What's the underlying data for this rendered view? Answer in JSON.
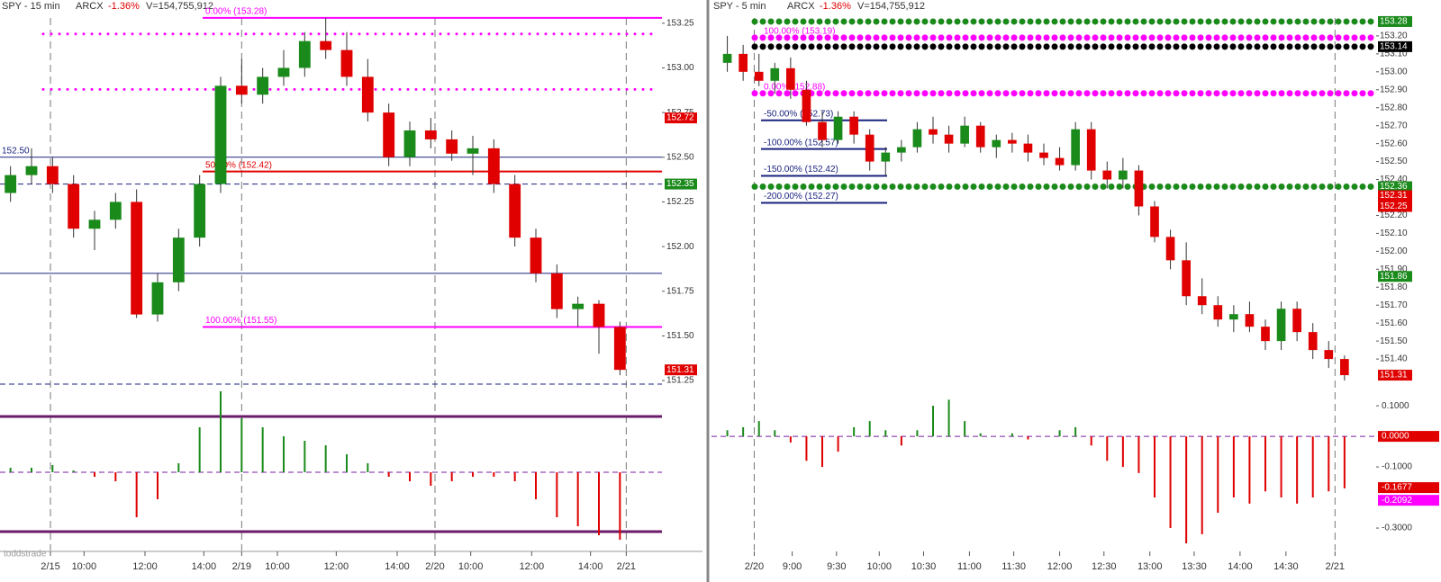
{
  "chart_data": [
    {
      "type": "candlestick",
      "title": "SPY - 15 min",
      "exchange": "ARCX",
      "change": "-1.36%",
      "volume": "V=154,755,912",
      "xlim": [
        -0.5,
        31
      ],
      "ylim": [
        151.19,
        153.38
      ],
      "xticks": [
        {
          "value": 1.9,
          "label": "2/15"
        },
        {
          "value": 3.5,
          "label": "10:00"
        },
        {
          "value": 6.4,
          "label": "12:00"
        },
        {
          "value": 9.2,
          "label": "14:00"
        },
        {
          "value": 11,
          "label": "2/19"
        },
        {
          "value": 12.7,
          "label": "10:00"
        },
        {
          "value": 15.5,
          "label": "12:00"
        },
        {
          "value": 18.4,
          "label": "14:00"
        },
        {
          "value": 20.2,
          "label": "2/20"
        },
        {
          "value": 21.9,
          "label": "10:00"
        },
        {
          "value": 24.8,
          "label": "12:00"
        },
        {
          "value": 27.6,
          "label": "14:00"
        },
        {
          "value": 29.3,
          "label": "2/21"
        }
      ],
      "yticks": [
        153.25,
        {
          "value": 153,
          "label": "153.00"
        },
        152.75,
        {
          "value": 152.5,
          "label": "152.50"
        },
        152.25,
        {
          "value": 152,
          "label": "152.00"
        },
        151.75,
        {
          "value": 151.5,
          "label": "151.50"
        },
        151.25
      ],
      "ohlc": [
        [
          152.3,
          152.45,
          152.25,
          152.4
        ],
        [
          152.4,
          152.55,
          152.35,
          152.45
        ],
        [
          152.45,
          152.5,
          152.3,
          152.35
        ],
        [
          152.35,
          152.4,
          152.05,
          152.1
        ],
        [
          152.1,
          152.2,
          151.98,
          152.15
        ],
        [
          152.15,
          152.3,
          152.1,
          152.25
        ],
        [
          152.25,
          152.32,
          151.6,
          151.62
        ],
        [
          151.62,
          151.85,
          151.58,
          151.8
        ],
        [
          151.8,
          152.1,
          151.75,
          152.05
        ],
        [
          152.05,
          152.4,
          152.0,
          152.35
        ],
        [
          152.35,
          152.95,
          152.3,
          152.9
        ],
        [
          152.9,
          153.05,
          152.8,
          152.85
        ],
        [
          152.85,
          153.0,
          152.8,
          152.95
        ],
        [
          152.95,
          153.1,
          152.9,
          153.0
        ],
        [
          153.0,
          153.2,
          152.95,
          153.15
        ],
        [
          153.15,
          153.28,
          153.05,
          153.1
        ],
        [
          153.1,
          153.2,
          152.9,
          152.95
        ],
        [
          152.95,
          153.05,
          152.7,
          152.75
        ],
        [
          152.75,
          152.8,
          152.45,
          152.5
        ],
        [
          152.5,
          152.7,
          152.45,
          152.65
        ],
        [
          152.65,
          152.72,
          152.55,
          152.6
        ],
        [
          152.6,
          152.65,
          152.48,
          152.52
        ],
        [
          152.52,
          152.62,
          152.4,
          152.55
        ],
        [
          152.55,
          152.6,
          152.3,
          152.35
        ],
        [
          152.35,
          152.4,
          152.0,
          152.05
        ],
        [
          152.05,
          152.1,
          151.8,
          151.85
        ],
        [
          151.85,
          151.9,
          151.6,
          151.65
        ],
        [
          151.65,
          151.72,
          151.55,
          151.68
        ],
        [
          151.68,
          151.7,
          151.4,
          151.55
        ],
        [
          151.55,
          151.58,
          151.28,
          151.31
        ]
      ],
      "levels": [
        {
          "value": 152.5,
          "label": "152.50",
          "style": "solid",
          "color": "#1a237e"
        },
        {
          "value": 151.85,
          "style": "solid",
          "color": "#1a237e"
        },
        {
          "value": 151.23,
          "style": "dashed",
          "color": "#1a237e"
        },
        {
          "value": 152.35,
          "style": "dashed",
          "color": "#1a237e"
        },
        {
          "value": 153.19,
          "style": "dots",
          "color": "#ff00ff"
        },
        {
          "value": 152.88,
          "style": "dots",
          "color": "#ff00ff"
        },
        {
          "value": 152.42,
          "label": "50.00% (152.42)",
          "style": "fib",
          "color": "#e00000"
        },
        {
          "value": 151.55,
          "label": "100.00% (151.55)",
          "style": "fib",
          "color": "#ff00ff"
        },
        {
          "value": 153.28,
          "label": "0.00% (153.28)",
          "style": "fib",
          "color": "#ff00ff"
        }
      ],
      "tags": [
        {
          "value": 152.72,
          "color": "#e00000"
        },
        {
          "value": 152.35,
          "color": "#1a8a1a"
        },
        {
          "value": 151.31,
          "color": "#e00000"
        }
      ],
      "indicator": {
        "ylim": [
          -0.8,
          0.8
        ],
        "values": [
          0.05,
          0.05,
          0.08,
          0.02,
          -0.05,
          -0.1,
          -0.5,
          -0.3,
          0.1,
          0.5,
          0.9,
          0.6,
          0.5,
          0.4,
          0.35,
          0.3,
          0.2,
          0.1,
          -0.05,
          -0.1,
          -0.15,
          -0.1,
          -0.05,
          -0.05,
          -0.1,
          -0.3,
          -0.5,
          -0.6,
          -0.7,
          -0.75
        ],
        "yticks": [],
        "tags": []
      }
    },
    {
      "type": "candlestick",
      "title": "SPY - 5 min",
      "exchange": "ARCX",
      "change": "-1.36%",
      "volume": "V=154,755,912",
      "xlim": [
        -1,
        41
      ],
      "ylim": [
        151.195,
        153.4
      ],
      "xticks": [
        {
          "value": 1.7,
          "label": "2/20"
        },
        {
          "value": 4.1,
          "label": "9:00"
        },
        {
          "value": 6.9,
          "label": "9:30"
        },
        {
          "value": 9.6,
          "label": "10:00"
        },
        {
          "value": 12.4,
          "label": "10:30"
        },
        {
          "value": 15.3,
          "label": "11:00"
        },
        {
          "value": 18.1,
          "label": "11:30"
        },
        {
          "value": 21,
          "label": "12:00"
        },
        {
          "value": 23.8,
          "label": "12:30"
        },
        {
          "value": 26.7,
          "label": "13:00"
        },
        {
          "value": 29.5,
          "label": "13:30"
        },
        {
          "value": 32.4,
          "label": "14:00"
        },
        {
          "value": 35.3,
          "label": "14:30"
        },
        {
          "value": 38.4,
          "label": "2/21"
        }
      ],
      "yticks": [
        {
          "value": 153.2,
          "label": "153.20"
        },
        {
          "value": 153.1,
          "label": "153.10"
        },
        {
          "value": 153,
          "label": "153.00"
        },
        {
          "value": 152.9,
          "label": "152.90"
        },
        {
          "value": 152.8,
          "label": "152.80"
        },
        {
          "value": 152.7,
          "label": "152.70"
        },
        {
          "value": 152.6,
          "label": "152.60"
        },
        {
          "value": 152.5,
          "label": "152.50"
        },
        {
          "value": 152.4,
          "label": "152.40"
        },
        {
          "value": 152.2,
          "label": "152.20"
        },
        {
          "value": 152.1,
          "label": "152.10"
        },
        {
          "value": 152,
          "label": "152.00"
        },
        {
          "value": 151.9,
          "label": "151.90"
        },
        {
          "value": 151.8,
          "label": "151.80"
        },
        {
          "value": 151.7,
          "label": "151.70"
        },
        {
          "value": 151.6,
          "label": "151.60"
        },
        {
          "value": 151.5,
          "label": "151.50"
        },
        {
          "value": 151.4,
          "label": "151.40"
        }
      ],
      "ohlc": [
        [
          153.05,
          153.2,
          153.0,
          153.1
        ],
        [
          153.1,
          153.15,
          152.95,
          153.0
        ],
        [
          153.0,
          153.1,
          152.92,
          152.95
        ],
        [
          152.95,
          153.05,
          152.88,
          153.02
        ],
        [
          153.02,
          153.08,
          152.85,
          152.9
        ],
        [
          152.9,
          152.95,
          152.7,
          152.72
        ],
        [
          152.72,
          152.78,
          152.58,
          152.62
        ],
        [
          152.62,
          152.78,
          152.6,
          152.75
        ],
        [
          152.75,
          152.78,
          152.6,
          152.65
        ],
        [
          152.65,
          152.68,
          152.45,
          152.5
        ],
        [
          152.5,
          152.58,
          152.42,
          152.55
        ],
        [
          152.55,
          152.62,
          152.5,
          152.58
        ],
        [
          152.58,
          152.72,
          152.55,
          152.68
        ],
        [
          152.68,
          152.75,
          152.6,
          152.65
        ],
        [
          152.65,
          152.7,
          152.55,
          152.6
        ],
        [
          152.6,
          152.75,
          152.58,
          152.7
        ],
        [
          152.7,
          152.72,
          152.55,
          152.58
        ],
        [
          152.58,
          152.65,
          152.52,
          152.62
        ],
        [
          152.62,
          152.66,
          152.55,
          152.6
        ],
        [
          152.6,
          152.65,
          152.5,
          152.55
        ],
        [
          152.55,
          152.6,
          152.48,
          152.52
        ],
        [
          152.52,
          152.58,
          152.45,
          152.48
        ],
        [
          152.48,
          152.72,
          152.45,
          152.68
        ],
        [
          152.68,
          152.72,
          152.4,
          152.45
        ],
        [
          152.45,
          152.5,
          152.35,
          152.4
        ],
        [
          152.4,
          152.52,
          152.35,
          152.45
        ],
        [
          152.45,
          152.48,
          152.2,
          152.25
        ],
        [
          152.25,
          152.28,
          152.05,
          152.08
        ],
        [
          152.08,
          152.12,
          151.9,
          151.95
        ],
        [
          151.95,
          152.05,
          151.7,
          151.75
        ],
        [
          151.75,
          151.85,
          151.65,
          151.7
        ],
        [
          151.7,
          151.75,
          151.58,
          151.62
        ],
        [
          151.62,
          151.7,
          151.55,
          151.65
        ],
        [
          151.65,
          151.72,
          151.55,
          151.58
        ],
        [
          151.58,
          151.62,
          151.45,
          151.5
        ],
        [
          151.5,
          151.72,
          151.45,
          151.68
        ],
        [
          151.68,
          151.72,
          151.5,
          151.55
        ],
        [
          151.55,
          151.6,
          151.4,
          151.45
        ],
        [
          151.45,
          151.5,
          151.35,
          151.4
        ],
        [
          151.4,
          151.42,
          151.28,
          151.31
        ]
      ],
      "levels": [
        {
          "value": 153.28,
          "style": "dots",
          "color": "#1a8a1a"
        },
        {
          "value": 153.19,
          "label": "100.00% (153.19)",
          "style": "dots",
          "color": "#ff00ff"
        },
        {
          "value": 153.14,
          "style": "dots",
          "color": "#000000"
        },
        {
          "value": 152.88,
          "label": "0.00% (152.88)",
          "style": "dots",
          "color": "#ff00ff"
        },
        {
          "value": 152.36,
          "style": "dots",
          "color": "#1a8a1a"
        },
        {
          "value": 152.73,
          "label": "-50.00% (152.73)",
          "style": "fib",
          "color": "#1a237e"
        },
        {
          "value": 152.57,
          "label": "-100.00% (152.57)",
          "style": "fib",
          "color": "#1a237e"
        },
        {
          "value": 152.42,
          "label": "-150.00% (152.42)",
          "style": "fib",
          "color": "#1a237e"
        },
        {
          "value": 152.27,
          "label": "-200.00% (152.27)",
          "style": "fib",
          "color": "#1a237e"
        }
      ],
      "tags": [
        {
          "value": 153.28,
          "color": "#1a8a1a"
        },
        {
          "value": 153.14,
          "color": "#000000"
        },
        {
          "value": 152.36,
          "color": "#1a8a1a"
        },
        {
          "value": 152.31,
          "color": "#e00000"
        },
        {
          "value": 152.25,
          "color": "#e00000"
        },
        {
          "value": 151.86,
          "color": "#1a8a1a"
        },
        {
          "value": 151.31,
          "color": "#e00000"
        }
      ],
      "indicator": {
        "ylim": [
          -0.397,
          0.118
        ],
        "yticks": [
          {
            "value": 0.1,
            "label": "0.1000"
          },
          {
            "value": -0.1,
            "label": "-0.1000"
          },
          {
            "value": -0.3,
            "label": "-0.3000"
          }
        ],
        "values": [
          0.02,
          0.03,
          0.05,
          0.02,
          -0.02,
          -0.08,
          -0.1,
          -0.05,
          0.03,
          0.05,
          0.02,
          -0.03,
          0.02,
          0.1,
          0.12,
          0.05,
          0.01,
          0.0,
          0.01,
          -0.01,
          0.0,
          0.02,
          0.03,
          -0.03,
          -0.08,
          -0.1,
          -0.12,
          -0.2,
          -0.3,
          -0.35,
          -0.32,
          -0.25,
          -0.2,
          -0.22,
          -0.18,
          -0.2,
          -0.22,
          -0.2,
          -0.18,
          -0.17
        ],
        "tags": [
          {
            "value": 0,
            "label": "0.0000",
            "color": "#e00000"
          },
          {
            "value": -0.1677,
            "color": "#e00000"
          },
          {
            "value": -0.2092,
            "color": "#ff00ff"
          }
        ]
      }
    }
  ]
}
